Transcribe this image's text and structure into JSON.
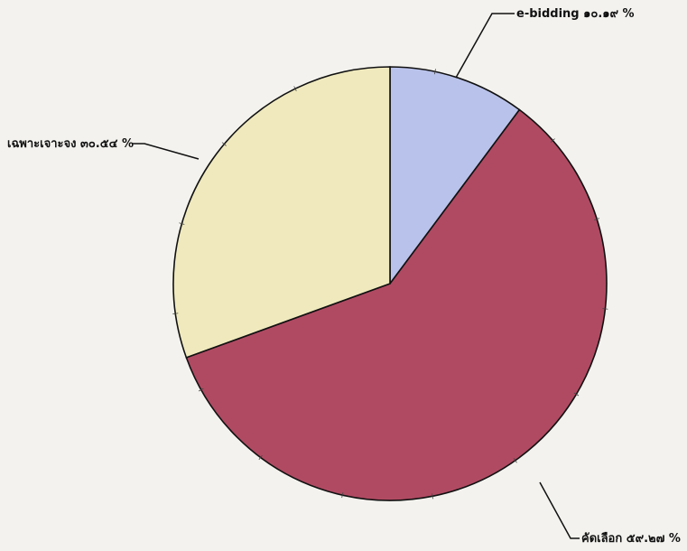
{
  "chart_data": {
    "type": "pie",
    "start_angle_deg": 0,
    "direction": "clockwise",
    "slices": [
      {
        "label": "e-bidding",
        "value": 10.19,
        "value_text": "๑๐.๑๙",
        "unit": "%",
        "color": "#b9c2ea"
      },
      {
        "label": "คัดเลือก",
        "value": 59.27,
        "value_text": "๕๙.๒๗",
        "unit": "%",
        "color": "#b04a62"
      },
      {
        "label": "เฉพาะเจาะจง",
        "value": 30.54,
        "value_text": "๓๐.๕๔",
        "unit": "%",
        "color": "#efe9bd"
      }
    ]
  }
}
